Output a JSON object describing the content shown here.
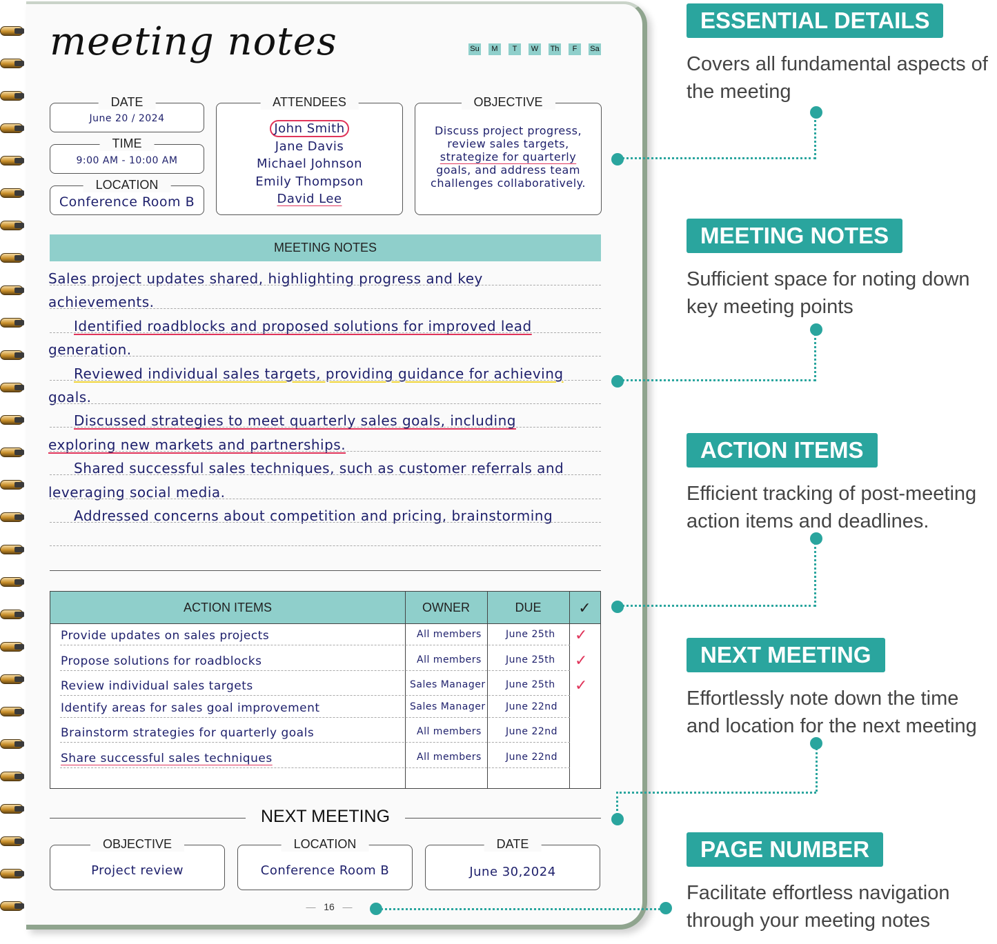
{
  "page": {
    "title": "meeting notes",
    "weekdays": [
      "Su",
      "M",
      "T",
      "W",
      "Th",
      "F",
      "Sa"
    ],
    "date": {
      "label": "DATE",
      "value": "June 20 / 2024"
    },
    "time": {
      "label": "TIME",
      "value": "9:00 AM - 10:00 AM"
    },
    "location": {
      "label": "LOCATION",
      "value": "Conference Room B"
    },
    "attendees": {
      "label": "ATTENDEES",
      "names": [
        "John Smith",
        "Jane Davis",
        "Michael Johnson",
        "Emily Thompson",
        "David Lee"
      ]
    },
    "objective": {
      "label": "OBJECTIVE",
      "lines": [
        "Discuss project progress,",
        "review sales targets,",
        "strategize for quarterly",
        "goals, and address team",
        "challenges collaboratively."
      ]
    },
    "meeting_notes": {
      "label": "MEETING NOTES",
      "lines": [
        "Sales project updates shared, highlighting progress and key",
        "achievements.",
        "Identified roadblocks and proposed solutions for improved lead",
        "generation.",
        "Reviewed individual sales targets, providing guidance for achieving",
        "goals.",
        "Discussed strategies to meet quarterly sales goals, including",
        "exploring new markets and partnerships.",
        "Shared successful sales techniques, such as customer referrals and",
        "leveraging social media.",
        "Addressed concerns about competition and pricing, brainstorming"
      ]
    },
    "action_items": {
      "headers": [
        "ACTION ITEMS",
        "OWNER",
        "DUE",
        "✓"
      ],
      "rows": [
        {
          "item": "Provide updates on sales projects",
          "owner": "All members",
          "due": "June 25th",
          "done": true
        },
        {
          "item": "Propose solutions for roadblocks",
          "owner": "All members",
          "due": "June 25th",
          "done": true
        },
        {
          "item": "Review individual sales targets",
          "owner": "Sales Manager",
          "due": "June 25th",
          "done": true
        },
        {
          "item": "Identify areas for sales goal improvement",
          "owner": "Sales Manager",
          "due": "June 22nd",
          "done": false
        },
        {
          "item": "Brainstorm strategies for quarterly goals",
          "owner": "All members",
          "due": "June 22nd",
          "done": false
        },
        {
          "item": "Share successful sales techniques",
          "owner": "All members",
          "due": "June 22nd",
          "done": false
        }
      ]
    },
    "next_meeting": {
      "label": "NEXT MEETING",
      "objective": {
        "label": "OBJECTIVE",
        "value": "Project review"
      },
      "location": {
        "label": "LOCATION",
        "value": "Conference Room B"
      },
      "date": {
        "label": "DATE",
        "value": "June 30,2024"
      }
    },
    "page_number": "16"
  },
  "callouts": [
    {
      "title": "ESSENTIAL DETAILS",
      "desc": "Covers all fundamental aspects of the meeting"
    },
    {
      "title": "MEETING NOTES",
      "desc": "Sufficient space for noting down key meeting points"
    },
    {
      "title": "ACTION ITEMS",
      "desc": "Efficient tracking of post-meeting action items and deadlines."
    },
    {
      "title": "NEXT MEETING",
      "desc": "Effortlessly note down the time and location for the next meeting"
    },
    {
      "title": "PAGE NUMBER",
      "desc": "Facilitate effortless navigation through your meeting notes"
    }
  ],
  "colors": {
    "accent": "#2aa59e",
    "header_fill": "#8fcfcb",
    "ink": "#1d1f6b",
    "highlight_red": "#e0345a",
    "highlight_yellow": "#f0d53a"
  }
}
